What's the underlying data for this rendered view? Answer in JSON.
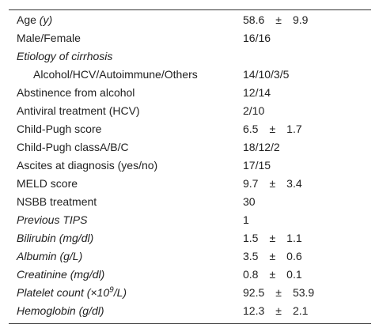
{
  "table": {
    "rows": [
      {
        "label": [
          {
            "text": "Age"
          },
          {
            "text": " (y)",
            "italic": true
          }
        ],
        "value": [
          "58.6",
          "±",
          "9.9"
        ]
      },
      {
        "label": [
          {
            "text": "Male/Female"
          }
        ],
        "value": [
          "16/16"
        ]
      },
      {
        "label": [
          {
            "text": "Etiology of cirrhosis",
            "italic": true
          }
        ]
      },
      {
        "label": [
          {
            "text": "Alcohol/HCV/Autoimmune/Others"
          }
        ],
        "indent": true,
        "value": [
          "14/10/3/5"
        ]
      },
      {
        "label": [
          {
            "text": "Abstinence from alcohol"
          }
        ],
        "value": [
          "12/14"
        ]
      },
      {
        "label": [
          {
            "text": "Antiviral treatment (HCV)"
          }
        ],
        "value": [
          "2/10"
        ]
      },
      {
        "label": [
          {
            "text": "Child-Pugh score"
          }
        ],
        "value": [
          "6.5",
          "±",
          "1.7"
        ]
      },
      {
        "label": [
          {
            "text": "Child-Pugh classA/B/C"
          }
        ],
        "value": [
          "18/12/2"
        ]
      },
      {
        "label": [
          {
            "text": "Ascites at diagnosis (yes/no)"
          }
        ],
        "value": [
          "17/15"
        ]
      },
      {
        "label": [
          {
            "text": "MELD score"
          }
        ],
        "value": [
          "9.7",
          "±",
          "3.4"
        ]
      },
      {
        "label": [
          {
            "text": "NSBB treatment"
          }
        ],
        "value": [
          "30"
        ]
      },
      {
        "label": [
          {
            "text": "Previous TIPS",
            "italic": true
          }
        ],
        "value": [
          "1"
        ]
      },
      {
        "label": [
          {
            "text": "Bilirubin (mg/dl)",
            "italic": true
          }
        ],
        "value": [
          "1.5",
          "±",
          "1.1"
        ]
      },
      {
        "label": [
          {
            "text": "Albumin (g/L)",
            "italic": true
          }
        ],
        "value": [
          "3.5",
          "±",
          "0.6"
        ]
      },
      {
        "label": [
          {
            "text": "Creatinine (mg/dl)",
            "italic": true
          }
        ],
        "value": [
          "0.8",
          "±",
          "0.1"
        ]
      },
      {
        "label": [
          {
            "text": "Platelet count (×10",
            "italic": true
          },
          {
            "text": "9",
            "italic": true,
            "sup": true
          },
          {
            "text": "/L)",
            "italic": true
          }
        ],
        "value": [
          "92.5",
          "±",
          "53.9"
        ]
      },
      {
        "label": [
          {
            "text": "Hemoglobin (g/dl)",
            "italic": true
          }
        ],
        "value": [
          "12.3",
          "±",
          "2.1"
        ]
      }
    ]
  }
}
